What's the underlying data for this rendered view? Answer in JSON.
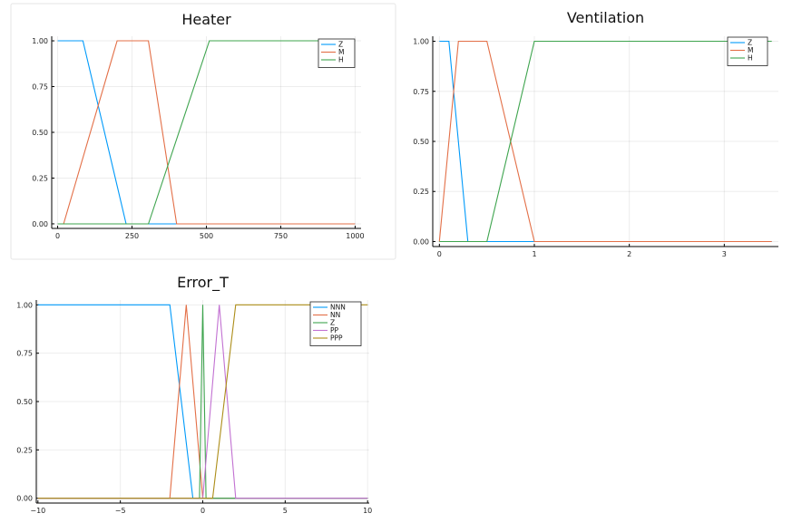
{
  "chart_data": [
    {
      "type": "line",
      "title": "Heater",
      "xlabel": "",
      "ylabel": "",
      "xlim": [
        0,
        1000
      ],
      "ylim": [
        0,
        1
      ],
      "xticks": [
        0,
        250,
        500,
        750,
        1000
      ],
      "yticks": [
        0.0,
        0.25,
        0.5,
        0.75,
        1.0
      ],
      "xtick_labels": [
        "0",
        "250",
        "500",
        "750",
        "1000"
      ],
      "ytick_labels": [
        "0.00",
        "0.25",
        "0.50",
        "0.75",
        "1.00"
      ],
      "grid": true,
      "legend_position": "top-right",
      "series": [
        {
          "name": "Z",
          "color": "#009AFA",
          "x": [
            0,
            85,
            230,
            1000
          ],
          "y": [
            1,
            1,
            0,
            0
          ]
        },
        {
          "name": "M",
          "color": "#E36F47",
          "x": [
            20,
            200,
            305,
            400,
            1000
          ],
          "y": [
            0,
            1,
            1,
            0,
            0
          ]
        },
        {
          "name": "H",
          "color": "#3EA44E",
          "x": [
            0,
            305,
            510,
            1000
          ],
          "y": [
            0,
            0,
            1,
            1
          ]
        }
      ]
    },
    {
      "type": "line",
      "title": "Ventilation",
      "xlabel": "",
      "ylabel": "",
      "xlim": [
        0,
        3.5
      ],
      "ylim": [
        0,
        1
      ],
      "xticks": [
        0,
        1,
        2,
        3
      ],
      "yticks": [
        0.0,
        0.25,
        0.5,
        0.75,
        1.0
      ],
      "xtick_labels": [
        "0",
        "1",
        "2",
        "3"
      ],
      "ytick_labels": [
        "0.00",
        "0.25",
        "0.50",
        "0.75",
        "1.00"
      ],
      "grid": true,
      "legend_position": "top-right",
      "series": [
        {
          "name": "Z",
          "color": "#009AFA",
          "x": [
            0,
            0.1,
            0.3,
            3.5
          ],
          "y": [
            1,
            1,
            0,
            0
          ]
        },
        {
          "name": "M",
          "color": "#E36F47",
          "x": [
            0,
            0.2,
            0.5,
            1,
            3.5
          ],
          "y": [
            0,
            1,
            1,
            0,
            0
          ]
        },
        {
          "name": "H",
          "color": "#3EA44E",
          "x": [
            0,
            0.5,
            1,
            3.5
          ],
          "y": [
            0,
            0,
            1,
            1
          ]
        }
      ]
    },
    {
      "type": "line",
      "title": "Error_T",
      "xlabel": "",
      "ylabel": "",
      "xlim": [
        -10,
        10
      ],
      "ylim": [
        0,
        1
      ],
      "xticks": [
        -10,
        -5,
        0,
        5,
        10
      ],
      "yticks": [
        0.0,
        0.25,
        0.5,
        0.75,
        1.0
      ],
      "xtick_labels": [
        "−10",
        "−5",
        "0",
        "5",
        "10"
      ],
      "ytick_labels": [
        "0.00",
        "0.25",
        "0.50",
        "0.75",
        "1.00"
      ],
      "grid": true,
      "legend_position": "top-right",
      "series": [
        {
          "name": "NNN",
          "color": "#009AFA",
          "x": [
            -10,
            -2,
            -0.6,
            10
          ],
          "y": [
            1,
            1,
            0,
            0
          ]
        },
        {
          "name": "NN",
          "color": "#E36F47",
          "x": [
            -10,
            -2,
            -1,
            0,
            10
          ],
          "y": [
            0,
            0,
            1,
            0,
            0
          ]
        },
        {
          "name": "Z",
          "color": "#3EA44E",
          "x": [
            -10,
            -0.2,
            0,
            0.2,
            10
          ],
          "y": [
            0,
            0,
            1,
            0,
            0
          ]
        },
        {
          "name": "PP",
          "color": "#C271D2",
          "x": [
            -10,
            0,
            1,
            2,
            10
          ],
          "y": [
            0,
            0,
            1,
            0,
            0
          ]
        },
        {
          "name": "PPP",
          "color": "#AC8D18",
          "x": [
            -10,
            0.6,
            2,
            10
          ],
          "y": [
            0,
            0,
            1,
            1
          ]
        }
      ]
    }
  ]
}
